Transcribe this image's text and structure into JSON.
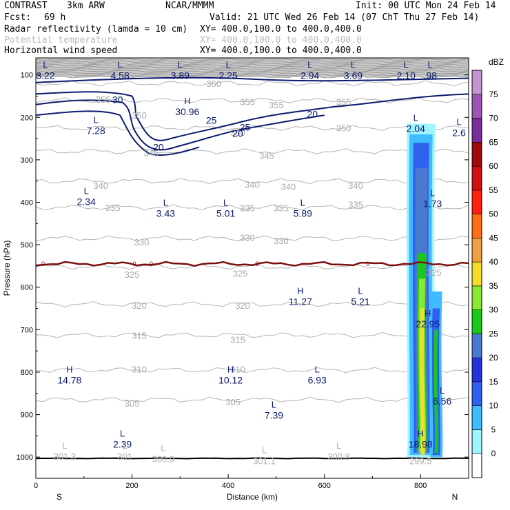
{
  "chart_data": {
    "type": "cross-section",
    "header": {
      "experiment": "CONTRAST",
      "model": "3km ARW",
      "institution": "NCAR/MMMM",
      "init": "Init: 00 UTC Mon 24 Feb 14",
      "fcst_label": "Fcst:",
      "fcst_value": "69 h",
      "valid": "Valid: 21 UTC Wed 26 Feb 14 (07 ChT Thu 27 Feb 14)"
    },
    "fields": [
      {
        "name": "Radar reflectivity (lamda = 10 cm)",
        "xy": "XY= 400.0,100.0 to 400.0,400.0",
        "color": "#000000"
      },
      {
        "name": "Potential temperature",
        "xy": "XY= 400.0,100.0 to 400.0,400.0",
        "color": "#bbbbbb"
      },
      {
        "name": "Horizontal wind speed",
        "xy": "XY= 400.0,100.0 to 400.0,400.0",
        "color": "#000000"
      }
    ],
    "xaxis": {
      "label": "Distance (km)",
      "range": [
        0,
        900
      ],
      "ticks": [
        0,
        200,
        400,
        600,
        800
      ],
      "left_end": "S",
      "right_end": "N"
    },
    "yaxis": {
      "label": "Pressure (hPa)",
      "range": [
        60,
        1050
      ],
      "ticks": [
        100,
        200,
        300,
        400,
        500,
        600,
        700,
        800,
        900,
        1000
      ]
    },
    "colorbar": {
      "unit": "dBZ",
      "labels": [
        "0",
        "5",
        "10",
        "15",
        "20",
        "25",
        "30",
        "35",
        "40",
        "45",
        "50",
        "55",
        "60",
        "65",
        "70",
        "75"
      ],
      "colors": [
        "#ffffff",
        "#9ff5ff",
        "#3fbcff",
        "#3060ee",
        "#2233dd",
        "#4a7ad0",
        "#19c819",
        "#88e832",
        "#f5dc28",
        "#f0a040",
        "#ff6e10",
        "#ff2010",
        "#d01010",
        "#a00a0a",
        "#7a2c9a",
        "#9e54b2",
        "#c494d2"
      ]
    },
    "theta_isolines": [
      {
        "value": "360",
        "x": 420,
        "p": 120
      },
      {
        "value": "355",
        "x": 480,
        "p": 160
      },
      {
        "value": "350",
        "x": 560,
        "p": 225
      },
      {
        "value": "345",
        "x": 510,
        "p": 280
      },
      {
        "value": "340",
        "x": 480,
        "p": 350
      },
      {
        "value": "335",
        "x": 470,
        "p": 412
      },
      {
        "value": "330",
        "x": 480,
        "p": 485
      },
      {
        "value": "325",
        "x": 470,
        "p": 552
      },
      {
        "value": "320",
        "x": 450,
        "p": 640
      },
      {
        "value": "315",
        "x": 440,
        "p": 713
      },
      {
        "value": "310",
        "x": 430,
        "p": 795
      },
      {
        "value": "305",
        "x": 420,
        "p": 865
      }
    ],
    "theta_labels": [
      {
        "text": "355",
        "x": 140,
        "p": 157
      },
      {
        "text": "360",
        "x": 370,
        "p": 120
      },
      {
        "text": "355",
        "x": 440,
        "p": 163
      },
      {
        "text": "355",
        "x": 500,
        "p": 170
      },
      {
        "text": "355",
        "x": 640,
        "p": 163
      },
      {
        "text": "350",
        "x": 215,
        "p": 195
      },
      {
        "text": "350",
        "x": 420,
        "p": 235
      },
      {
        "text": "350",
        "x": 640,
        "p": 225
      },
      {
        "text": "345",
        "x": 240,
        "p": 283
      },
      {
        "text": "345",
        "x": 480,
        "p": 290
      },
      {
        "text": "340",
        "x": 135,
        "p": 360
      },
      {
        "text": "340",
        "x": 450,
        "p": 358
      },
      {
        "text": "340",
        "x": 525,
        "p": 363
      },
      {
        "text": "340",
        "x": 665,
        "p": 360
      },
      {
        "text": "335",
        "x": 160,
        "p": 412
      },
      {
        "text": "335",
        "x": 440,
        "p": 413
      },
      {
        "text": "335",
        "x": 510,
        "p": 413
      },
      {
        "text": "335",
        "x": 665,
        "p": 405
      },
      {
        "text": "330",
        "x": 220,
        "p": 493
      },
      {
        "text": "330",
        "x": 440,
        "p": 483
      },
      {
        "text": "330",
        "x": 510,
        "p": 490
      },
      {
        "text": "325",
        "x": 200,
        "p": 570
      },
      {
        "text": "325",
        "x": 425,
        "p": 567
      },
      {
        "text": "325",
        "x": 828,
        "p": 565
      },
      {
        "text": "320",
        "x": 215,
        "p": 643
      },
      {
        "text": "320",
        "x": 430,
        "p": 643
      },
      {
        "text": "315",
        "x": 215,
        "p": 713
      },
      {
        "text": "315",
        "x": 420,
        "p": 723
      },
      {
        "text": "310",
        "x": 215,
        "p": 793
      },
      {
        "text": "310",
        "x": 420,
        "p": 793
      },
      {
        "text": "305",
        "x": 200,
        "p": 873
      },
      {
        "text": "305",
        "x": 410,
        "p": 870
      }
    ],
    "wind_contours": [
      {
        "value": "30",
        "x": 180,
        "p": 160
      },
      {
        "value": "25",
        "x": 355,
        "p": 220
      },
      {
        "value": "20",
        "x": 240,
        "p": 265
      }
    ],
    "wind_labels": [
      {
        "text": "30",
        "x": 170,
        "p": 158
      },
      {
        "text": "25",
        "x": 365,
        "p": 207
      },
      {
        "text": "20",
        "x": 420,
        "p": 238
      },
      {
        "text": "25",
        "x": 435,
        "p": 223
      },
      {
        "text": "20",
        "x": 575,
        "p": 192
      },
      {
        "text": "20",
        "x": 255,
        "p": 270
      }
    ],
    "freezing_level": {
      "label": "0",
      "p": 545
    },
    "extrema": [
      {
        "type": "L",
        "value": "3.22",
        "x": 20,
        "p": 90
      },
      {
        "type": "L",
        "value": "4.58",
        "x": 175,
        "p": 90
      },
      {
        "type": "L",
        "value": "3.89",
        "x": 300,
        "p": 90
      },
      {
        "type": "L",
        "value": "2.25",
        "x": 400,
        "p": 90
      },
      {
        "type": "L",
        "value": "2.94",
        "x": 570,
        "p": 90
      },
      {
        "type": "L",
        "value": "3.69",
        "x": 660,
        "p": 90
      },
      {
        "type": "L",
        "value": "2.10",
        "x": 770,
        "p": 90
      },
      {
        "type": "L",
        "value": ".98",
        "x": 820,
        "p": 90
      },
      {
        "type": "H",
        "value": "30.96",
        "x": 315,
        "p": 175
      },
      {
        "type": "L",
        "value": "7.28",
        "x": 125,
        "p": 220
      },
      {
        "type": "L",
        "value": "2.04",
        "x": 790,
        "p": 215
      },
      {
        "type": "L",
        "value": "2.6",
        "x": 880,
        "p": 225
      },
      {
        "type": "L",
        "value": "2.34",
        "x": 105,
        "p": 387
      },
      {
        "type": "L",
        "value": "3.43",
        "x": 270,
        "p": 415
      },
      {
        "type": "L",
        "value": "5.01",
        "x": 395,
        "p": 415
      },
      {
        "type": "L",
        "value": "5.89",
        "x": 555,
        "p": 415
      },
      {
        "type": "L",
        "value": "1.73",
        "x": 825,
        "p": 392
      },
      {
        "type": "H",
        "value": "11.27",
        "x": 550,
        "p": 622
      },
      {
        "type": "L",
        "value": "5.21",
        "x": 675,
        "p": 622
      },
      {
        "type": "H",
        "value": "22.95",
        "x": 815,
        "p": 675
      },
      {
        "type": "H",
        "value": "14.78",
        "x": 70,
        "p": 807
      },
      {
        "type": "H",
        "value": "10.12",
        "x": 405,
        "p": 807
      },
      {
        "type": "L",
        "value": "6.93",
        "x": 585,
        "p": 807
      },
      {
        "type": "L",
        "value": "6.56",
        "x": 845,
        "p": 857
      },
      {
        "type": "L",
        "value": "7.39",
        "x": 495,
        "p": 890
      },
      {
        "type": "L",
        "value": "2.39",
        "x": 180,
        "p": 958
      },
      {
        "type": "H",
        "value": "18.98",
        "x": 800,
        "p": 958
      }
    ],
    "theta_extrema": [
      {
        "type": "L",
        "value": "301.3",
        "x": 60,
        "p": 1000
      },
      {
        "type": "L",
        "value": "301",
        "x": 185,
        "p": 1000
      },
      {
        "type": "L",
        "value": "300.9",
        "x": 265,
        "p": 1005
      },
      {
        "type": "L",
        "value": "301.1",
        "x": 475,
        "p": 1010
      },
      {
        "type": "L",
        "value": "300.8",
        "x": 630,
        "p": 1000
      },
      {
        "type": "L",
        "value": "299.5",
        "x": 800,
        "p": 1010
      }
    ]
  }
}
